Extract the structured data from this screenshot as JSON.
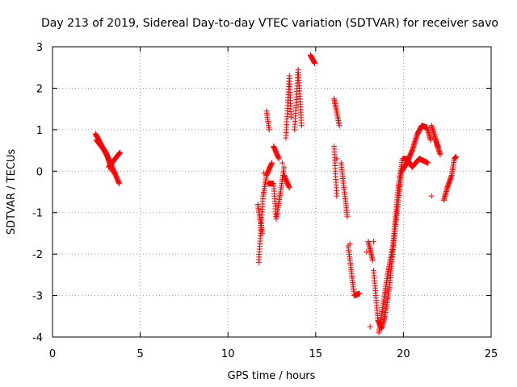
{
  "chart_data": {
    "type": "scatter",
    "title": "Day 213 of 2019, Sidereal Day-to-day VTEC variation (SDTVAR) for receiver savo",
    "xlabel": "GPS time / hours",
    "ylabel": "SDTVAR / TECUs",
    "xlim": [
      0,
      25
    ],
    "ylim": [
      -4,
      3
    ],
    "xticks": [
      0,
      5,
      10,
      15,
      20,
      25
    ],
    "yticks": [
      -4,
      -3,
      -2,
      -1,
      0,
      1,
      2,
      3
    ],
    "grid": true,
    "marker": "+",
    "color": "#ff0000",
    "series": [
      {
        "name": "SDTVAR",
        "segments": [
          [
            [
              2.45,
              0.9
            ],
            [
              3.2,
              0.3
            ],
            [
              3.8,
              -0.3
            ]
          ],
          [
            [
              3.2,
              0.1
            ],
            [
              3.85,
              0.45
            ]
          ],
          [
            [
              2.5,
              0.75
            ],
            [
              3.05,
              0.45
            ],
            [
              3.4,
              0.0
            ]
          ],
          [
            [
              11.75,
              -2.2
            ],
            [
              12.0,
              -0.6
            ],
            [
              12.2,
              -0.1
            ],
            [
              12.5,
              0.2
            ]
          ],
          [
            [
              11.7,
              -0.8
            ],
            [
              11.95,
              -1.5
            ]
          ],
          [
            [
              12.2,
              1.45
            ],
            [
              12.35,
              1.0
            ]
          ],
          [
            [
              12.6,
              0.6
            ],
            [
              12.9,
              0.3
            ]
          ],
          [
            [
              12.3,
              -0.3
            ],
            [
              12.6,
              -0.3
            ],
            [
              12.75,
              -1.15
            ],
            [
              13.0,
              -0.5
            ],
            [
              13.2,
              0.1
            ]
          ],
          [
            [
              13.2,
              -0.1
            ],
            [
              13.5,
              -0.4
            ]
          ],
          [
            [
              13.3,
              0.8
            ],
            [
              13.5,
              2.3
            ],
            [
              13.6,
              1.3
            ]
          ],
          [
            [
              13.8,
              1.0
            ],
            [
              14.0,
              2.45
            ],
            [
              14.2,
              1.1
            ]
          ],
          [
            [
              14.7,
              2.8
            ],
            [
              14.95,
              2.6
            ]
          ],
          [
            [
              16.05,
              1.75
            ],
            [
              16.35,
              1.1
            ]
          ],
          [
            [
              16.05,
              0.6
            ],
            [
              16.2,
              -0.6
            ]
          ],
          [
            [
              16.45,
              0.2
            ],
            [
              16.8,
              -1.1
            ]
          ],
          [
            [
              16.85,
              -1.8
            ],
            [
              17.2,
              -3.0
            ],
            [
              17.5,
              -2.95
            ]
          ],
          [
            [
              18.0,
              -1.7
            ],
            [
              18.25,
              -2.15
            ]
          ],
          [
            [
              18.3,
              -2.4
            ],
            [
              18.55,
              -3.6
            ],
            [
              18.75,
              -3.8
            ],
            [
              18.95,
              -3.5
            ],
            [
              19.2,
              -2.8
            ],
            [
              19.5,
              -1.5
            ],
            [
              19.9,
              0.0
            ],
            [
              20.2,
              0.2
            ],
            [
              20.5,
              0.5
            ],
            [
              20.8,
              0.9
            ],
            [
              21.05,
              1.1
            ],
            [
              21.35,
              1.05
            ],
            [
              21.55,
              0.75
            ]
          ],
          [
            [
              18.6,
              -3.9
            ],
            [
              18.85,
              -3.2
            ],
            [
              19.1,
              -2.5
            ],
            [
              19.4,
              -1.8
            ],
            [
              19.7,
              -0.4
            ],
            [
              19.95,
              0.3
            ],
            [
              20.2,
              0.3
            ],
            [
              20.5,
              0.1
            ],
            [
              20.9,
              0.3
            ],
            [
              21.4,
              0.2
            ]
          ],
          [
            [
              21.6,
              1.1
            ],
            [
              21.95,
              0.6
            ]
          ],
          [
            [
              21.8,
              0.8
            ],
            [
              22.1,
              0.4
            ]
          ],
          [
            [
              22.3,
              -0.7
            ],
            [
              22.5,
              -0.4
            ],
            [
              22.75,
              -0.1
            ],
            [
              22.9,
              0.3
            ],
            [
              23.0,
              0.35
            ]
          ]
        ],
        "points": [
          [
            3.3,
            0.15
          ],
          [
            17.9,
            -1.95
          ],
          [
            18.0,
            -1.7
          ],
          [
            18.3,
            -1.7
          ],
          [
            18.1,
            -3.75
          ],
          [
            16.2,
            0.3
          ],
          [
            21.6,
            -0.6
          ],
          [
            22.0,
            0.6
          ],
          [
            13.1,
            0.2
          ],
          [
            12.05,
            -0.05
          ],
          [
            16.95,
            -1.75
          ]
        ]
      }
    ]
  }
}
